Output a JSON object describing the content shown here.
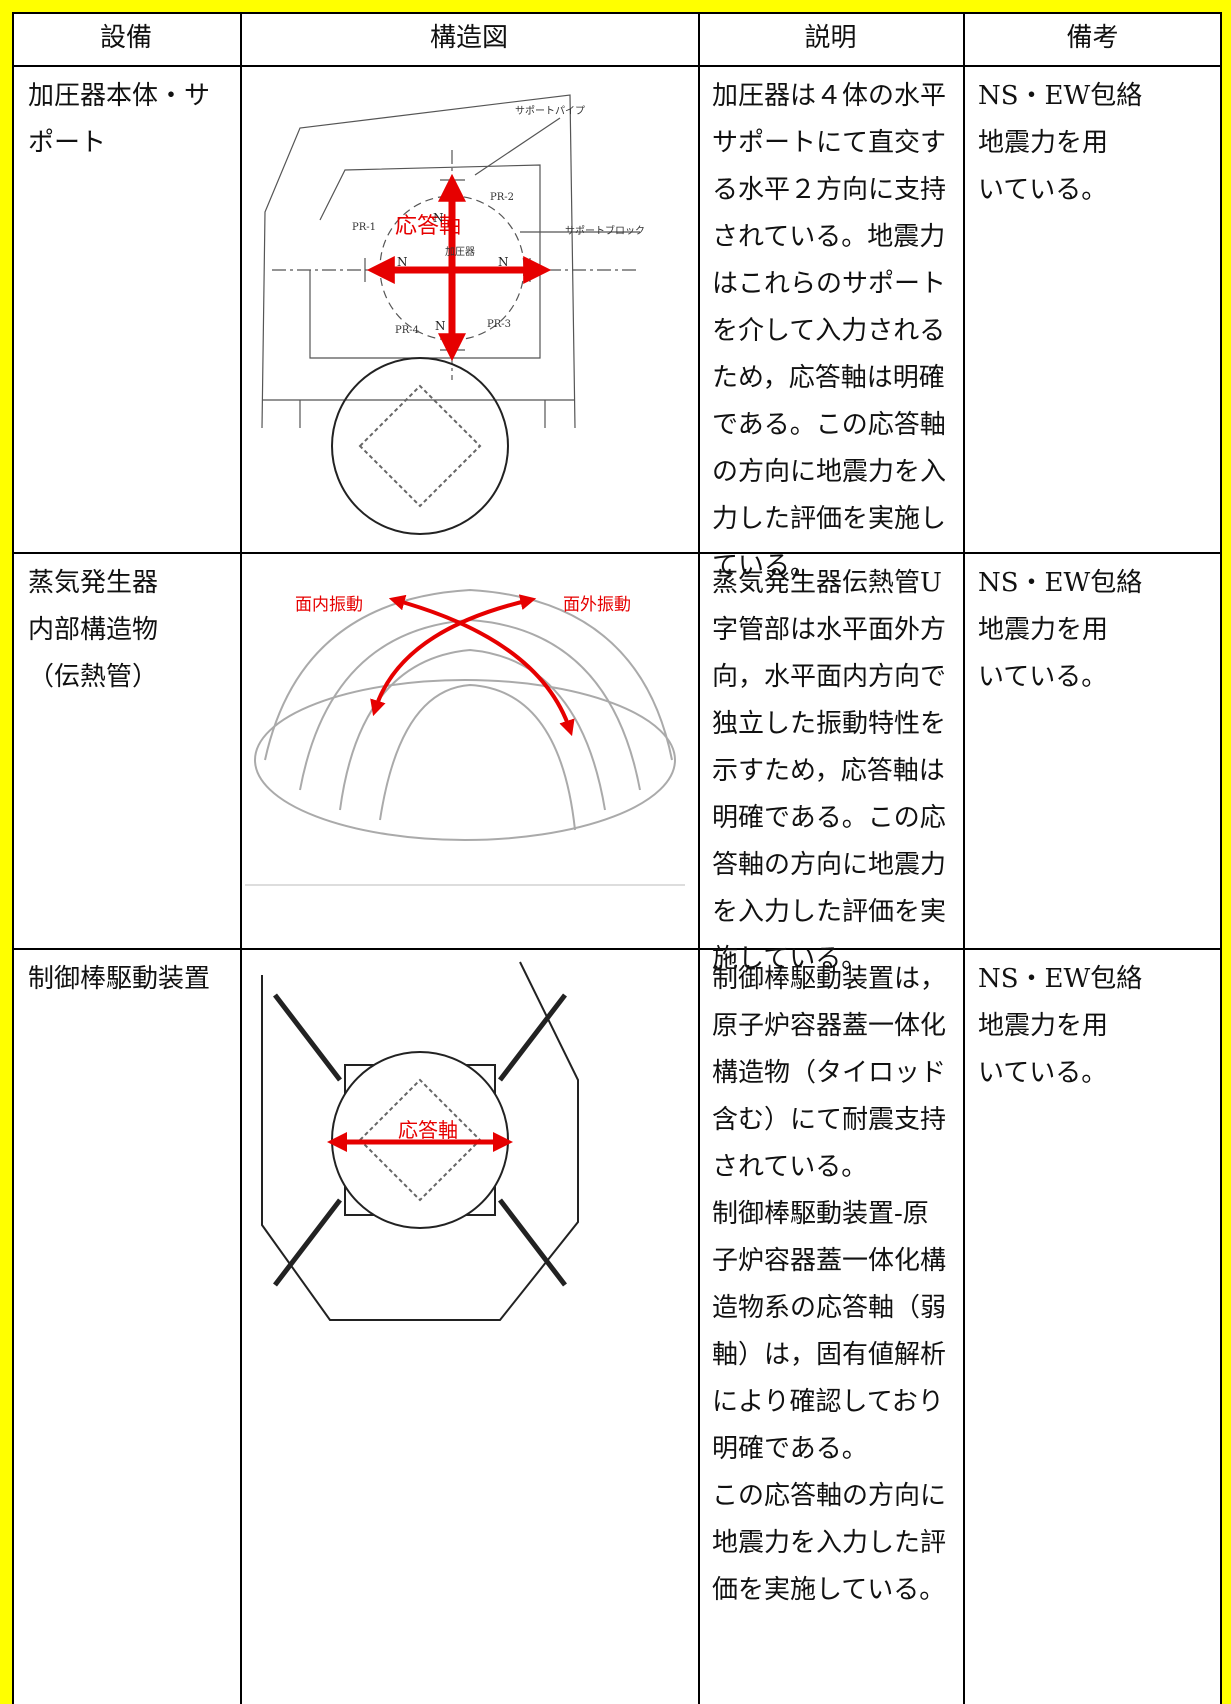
{
  "table": {
    "header": [
      "設備",
      "構造図",
      "説明",
      "備考"
    ],
    "rows": [
      {
        "equipment": [
          "加圧器本体・サ",
          "ポート"
        ],
        "figure_labels": [
          "応答軸",
          "加圧器",
          "PR-1",
          "PR-2",
          "PR-3",
          "PR-4",
          "サポートパイプ",
          "サポートブロック",
          "N",
          "N",
          "N",
          "N"
        ],
        "description": [
          "加圧器は４体の水平",
          "サポートにて直交す",
          "る水平２方向に支持",
          "されている。地震力",
          "はこれらのサポート",
          "を介して入力される",
          "ため，応答軸は明確",
          "である。この応答軸",
          "の方向に地震力を入",
          "力した評価を実施し",
          "ている。"
        ],
        "remarks": [
          "NS・EW包絡",
          "地震力を用",
          "いている。"
        ]
      },
      {
        "equipment": [
          "蒸気発生器",
          "内部構造物",
          "（伝熱管）"
        ],
        "figure_labels": [
          "面内振動",
          "面外振動"
        ],
        "description": [
          "蒸気発生器伝熱管U",
          "字管部は水平面外方",
          "向，水平面内方向で",
          "独立した振動特性を",
          "示すため，応答軸は",
          "明確である。この応",
          "答軸の方向に地震力",
          "を入力した評価を実",
          "施している。"
        ],
        "remarks": [
          "NS・EW包絡",
          "地震力を用",
          "いている。"
        ]
      },
      {
        "equipment": [
          "制御棒駆動装置"
        ],
        "figure_labels": [
          "応答軸"
        ],
        "description": [
          "制御棒駆動装置は，",
          "原子炉容器蓋一体化",
          "構造物（タイロッド",
          "含む）にて耐震支持",
          "されている。",
          "制御棒駆動装置-原",
          "子炉容器蓋一体化構",
          "造物系の応答軸（弱",
          "軸）は，固有値解析",
          "により確認しており",
          "明確である。",
          "この応答軸の方向に",
          "地震力を入力した評",
          "価を実施している。"
        ],
        "remarks": [
          "NS・EW包絡",
          "地震力を用",
          "いている。"
        ]
      }
    ]
  }
}
